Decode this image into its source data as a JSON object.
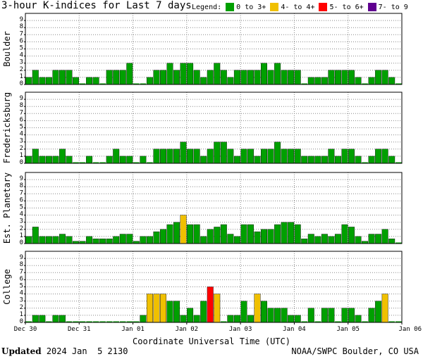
{
  "chart_data": {
    "type": "bar",
    "title": "3-hour K-indices for Last 7 days",
    "legend_title": "Legend:",
    "legend": [
      {
        "label": "0 to 3+",
        "color": "#00a000"
      },
      {
        "label": "4- to 4+",
        "color": "#f0c000"
      },
      {
        "label": "5- to 6+",
        "color": "#ff0000"
      },
      {
        "label": "7- to 9",
        "color": "#600090"
      }
    ],
    "xlabel": "Coordinate Universal Time (UTC)",
    "x_ticks": [
      "Dec 30",
      "Dec 31",
      "Jan 01",
      "Jan 02",
      "Jan 03",
      "Jan 04",
      "Jan 05",
      "Jan 06"
    ],
    "y_ticks": [
      "0",
      "1",
      "2",
      "3",
      "4",
      "5",
      "6",
      "7",
      "8",
      "9"
    ],
    "ylim": [
      0,
      9
    ],
    "grid": true,
    "panels": [
      {
        "name": "Boulder",
        "values": [
          1,
          2,
          1,
          1,
          2,
          2,
          2,
          1,
          0,
          1,
          1,
          0,
          2,
          2,
          2,
          3,
          0,
          0,
          1,
          2,
          2,
          3,
          2,
          3,
          3,
          2,
          1,
          2,
          3,
          2,
          1,
          2,
          2,
          2,
          2,
          3,
          2,
          3,
          2,
          2,
          2,
          0,
          1,
          1,
          1,
          2,
          2,
          2,
          2,
          1,
          0,
          1,
          2,
          2,
          1,
          0
        ]
      },
      {
        "name": "Fredericksburg",
        "values": [
          1,
          2,
          1,
          1,
          1,
          2,
          1,
          0,
          0,
          1,
          0,
          0,
          1,
          2,
          1,
          1,
          0,
          1,
          0,
          2,
          2,
          2,
          2,
          3,
          2,
          2,
          1,
          2,
          3,
          3,
          2,
          1,
          2,
          2,
          1,
          2,
          2,
          3,
          2,
          2,
          2,
          1,
          1,
          1,
          1,
          2,
          1,
          2,
          2,
          1,
          0,
          1,
          2,
          2,
          1,
          0
        ]
      },
      {
        "name": "Est. Planetary",
        "values": [
          1,
          2.33,
          1,
          1,
          1,
          1.33,
          1,
          0.33,
          0.33,
          1,
          0.67,
          0.67,
          0.67,
          1,
          1.33,
          1.33,
          0.33,
          1,
          1,
          1.67,
          2,
          2.67,
          3,
          4,
          2.67,
          2.67,
          1,
          2,
          2.33,
          2.67,
          1.33,
          1,
          2.67,
          2.67,
          1.67,
          2,
          2,
          2.67,
          3,
          3,
          2.67,
          0.67,
          1.33,
          1,
          1.33,
          1,
          1.33,
          2.67,
          2.33,
          1,
          0.33,
          1.33,
          1.33,
          2,
          0.67,
          0
        ]
      },
      {
        "name": "College",
        "values": [
          0,
          1,
          1,
          0,
          1,
          1,
          0,
          0,
          0,
          0,
          0,
          0,
          0,
          0,
          0,
          0,
          0,
          1,
          4,
          4,
          4,
          3,
          3,
          1,
          2,
          1,
          3,
          5,
          4,
          0,
          1,
          1,
          3,
          1,
          4,
          3,
          2,
          2,
          2,
          1,
          1,
          0,
          2,
          0,
          2,
          2,
          0,
          2,
          2,
          1,
          0,
          2,
          3,
          4,
          0,
          0
        ]
      }
    ],
    "colors": {
      "quiet": "#00a000",
      "active": "#f0c000",
      "storm": "#ff0000",
      "severe": "#600090",
      "grid": "#888888"
    }
  },
  "footer": {
    "updated_label": "Updated",
    "updated_value": " 2024 Jan  5 2130",
    "source": "NOAA/SWPC Boulder, CO USA"
  }
}
